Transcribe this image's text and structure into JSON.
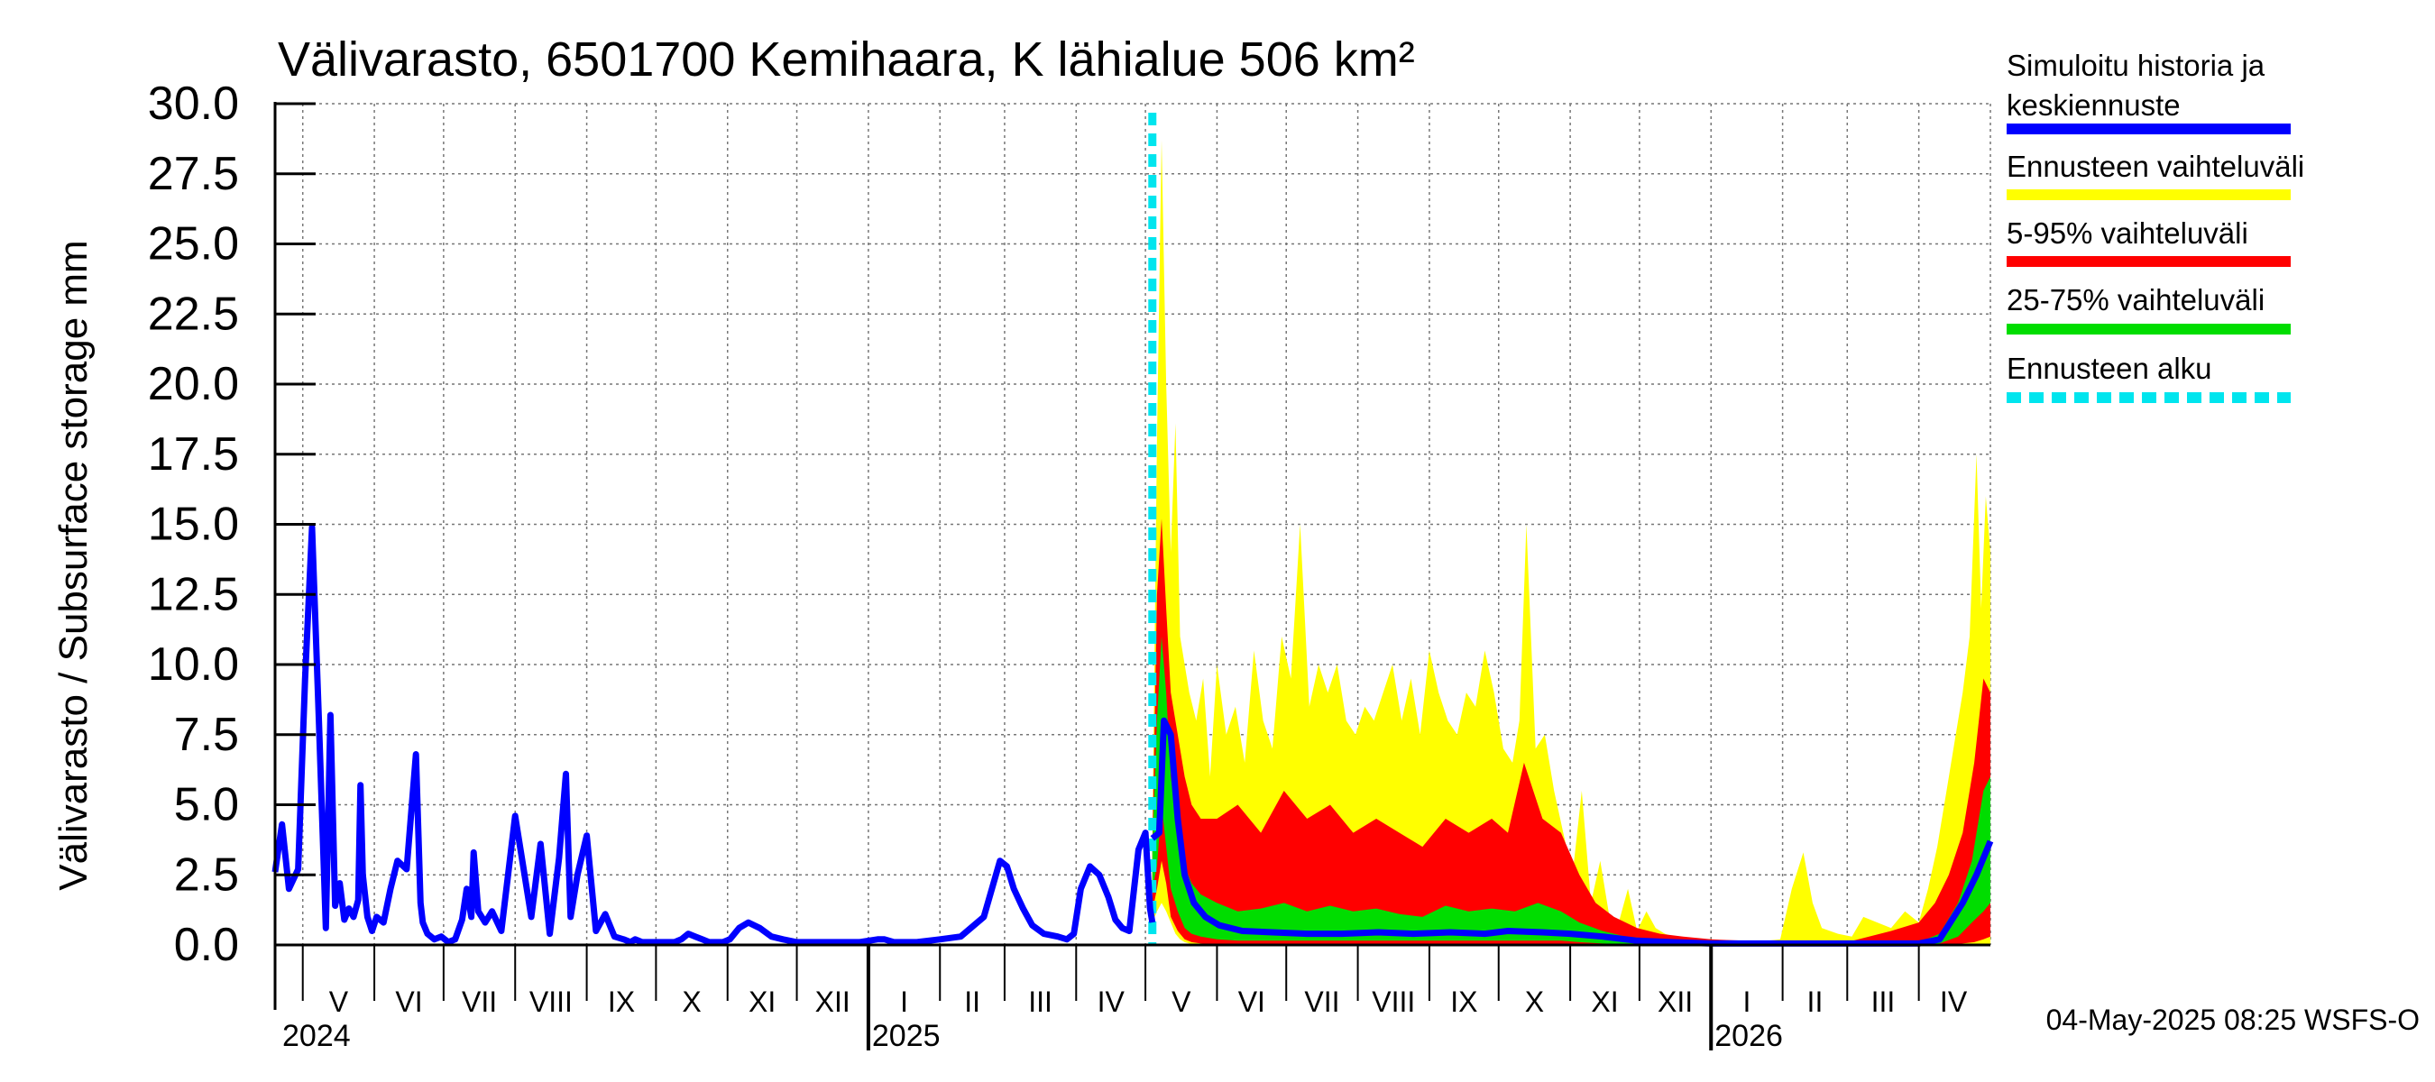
{
  "chart_data": {
    "type": "area",
    "title": "Välivarasto, 6501700 Kemihaara, K lähialue 506 km²",
    "ylabel": "Välivarasto / Subsurface storage  mm",
    "ylim": [
      0,
      30
    ],
    "yticks": [
      "0.0",
      "2.5",
      "5.0",
      "7.5",
      "10.0",
      "12.5",
      "15.0",
      "17.5",
      "20.0",
      "22.5",
      "25.0",
      "27.5",
      "30.0"
    ],
    "x_start": "2024-04-19",
    "x_end": "2026-05-02",
    "forecast_start": "2025-05-04",
    "grid": true,
    "months": [
      {
        "label": "V",
        "start": "2024-05-01",
        "end": "2024-06-01"
      },
      {
        "label": "VI",
        "start": "2024-06-01",
        "end": "2024-07-01"
      },
      {
        "label": "VII",
        "start": "2024-07-01",
        "end": "2024-08-01"
      },
      {
        "label": "VIII",
        "start": "2024-08-01",
        "end": "2024-09-01"
      },
      {
        "label": "IX",
        "start": "2024-09-01",
        "end": "2024-10-01"
      },
      {
        "label": "X",
        "start": "2024-10-01",
        "end": "2024-11-01"
      },
      {
        "label": "XI",
        "start": "2024-11-01",
        "end": "2024-12-01"
      },
      {
        "label": "XII",
        "start": "2024-12-01",
        "end": "2025-01-01"
      },
      {
        "label": "I",
        "start": "2025-01-01",
        "end": "2025-02-01"
      },
      {
        "label": "II",
        "start": "2025-02-01",
        "end": "2025-03-01"
      },
      {
        "label": "III",
        "start": "2025-03-01",
        "end": "2025-04-01"
      },
      {
        "label": "IV",
        "start": "2025-04-01",
        "end": "2025-05-01"
      },
      {
        "label": "V",
        "start": "2025-05-01",
        "end": "2025-06-01"
      },
      {
        "label": "VI",
        "start": "2025-06-01",
        "end": "2025-07-01"
      },
      {
        "label": "VII",
        "start": "2025-07-01",
        "end": "2025-08-01"
      },
      {
        "label": "VIII",
        "start": "2025-08-01",
        "end": "2025-09-01"
      },
      {
        "label": "IX",
        "start": "2025-09-01",
        "end": "2025-10-01"
      },
      {
        "label": "X",
        "start": "2025-10-01",
        "end": "2025-11-01"
      },
      {
        "label": "XI",
        "start": "2025-11-01",
        "end": "2025-12-01"
      },
      {
        "label": "XII",
        "start": "2025-12-01",
        "end": "2026-01-01"
      },
      {
        "label": "I",
        "start": "2026-01-01",
        "end": "2026-02-01"
      },
      {
        "label": "II",
        "start": "2026-02-01",
        "end": "2026-03-01"
      },
      {
        "label": "III",
        "start": "2026-03-01",
        "end": "2026-04-01"
      },
      {
        "label": "IV",
        "start": "2026-04-01",
        "end": "2026-05-01"
      }
    ],
    "years": [
      {
        "label": "2024",
        "date": "2024-04-19"
      },
      {
        "label": "2025",
        "date": "2025-01-01"
      },
      {
        "label": "2026",
        "date": "2026-01-01"
      }
    ],
    "history": {
      "name": "Simuloitu historia ja keskiennuste",
      "color": "#0000ff",
      "x": [
        "2024-04-19",
        "2024-04-22",
        "2024-04-25",
        "2024-04-29",
        "2024-05-02",
        "2024-05-05",
        "2024-05-08",
        "2024-05-11",
        "2024-05-13",
        "2024-05-15",
        "2024-05-17",
        "2024-05-19",
        "2024-05-21",
        "2024-05-23",
        "2024-05-25",
        "2024-05-26",
        "2024-05-27",
        "2024-05-29",
        "2024-05-31",
        "2024-06-02",
        "2024-06-05",
        "2024-06-08",
        "2024-06-11",
        "2024-06-15",
        "2024-06-19",
        "2024-06-21",
        "2024-06-22",
        "2024-06-24",
        "2024-06-27",
        "2024-06-30",
        "2024-07-03",
        "2024-07-06",
        "2024-07-09",
        "2024-07-11",
        "2024-07-13",
        "2024-07-14",
        "2024-07-16",
        "2024-07-19",
        "2024-07-22",
        "2024-07-26",
        "2024-08-01",
        "2024-08-08",
        "2024-08-12",
        "2024-08-16",
        "2024-08-20",
        "2024-08-23",
        "2024-08-25",
        "2024-08-28",
        "2024-09-01",
        "2024-09-05",
        "2024-09-09",
        "2024-09-13",
        "2024-09-17",
        "2024-09-20",
        "2024-09-22",
        "2024-09-25",
        "2024-09-28",
        "2024-10-01",
        "2024-10-04",
        "2024-10-07",
        "2024-10-09",
        "2024-10-12",
        "2024-10-15",
        "2024-10-18",
        "2024-10-21",
        "2024-10-24",
        "2024-10-27",
        "2024-10-30",
        "2024-11-02",
        "2024-11-06",
        "2024-11-10",
        "2024-11-15",
        "2024-11-20",
        "2024-11-25",
        "2024-12-01",
        "2024-12-10",
        "2024-12-20",
        "2024-12-28",
        "2025-01-05",
        "2025-01-08",
        "2025-01-12",
        "2025-01-16",
        "2025-01-22",
        "2025-02-01",
        "2025-02-10",
        "2025-02-20",
        "2025-02-27",
        "2025-03-02",
        "2025-03-05",
        "2025-03-09",
        "2025-03-13",
        "2025-03-18",
        "2025-03-24",
        "2025-03-28",
        "2025-03-31",
        "2025-04-03",
        "2025-04-07",
        "2025-04-11",
        "2025-04-15",
        "2025-04-18",
        "2025-04-21",
        "2025-04-24",
        "2025-04-28",
        "2025-05-01",
        "2025-05-03",
        "2025-05-04"
      ],
      "y": [
        2.6,
        4.3,
        2.0,
        2.7,
        9.5,
        14.9,
        8.0,
        0.6,
        8.2,
        1.4,
        2.2,
        0.9,
        1.3,
        1.0,
        1.6,
        5.7,
        2.5,
        1.0,
        0.5,
        1.0,
        0.8,
        2.0,
        3.0,
        2.7,
        6.8,
        1.5,
        0.8,
        0.4,
        0.2,
        0.3,
        0.1,
        0.2,
        0.9,
        2.0,
        1.0,
        3.3,
        1.2,
        0.8,
        1.2,
        0.5,
        4.6,
        1.0,
        3.6,
        0.4,
        3.1,
        6.1,
        1.0,
        2.5,
        3.9,
        0.5,
        1.1,
        0.3,
        0.2,
        0.1,
        0.2,
        0.1,
        0.1,
        0.1,
        0.1,
        0.1,
        0.1,
        0.2,
        0.4,
        0.3,
        0.2,
        0.1,
        0.1,
        0.1,
        0.2,
        0.6,
        0.8,
        0.6,
        0.3,
        0.2,
        0.1,
        0.1,
        0.1,
        0.1,
        0.2,
        0.2,
        0.1,
        0.1,
        0.1,
        0.2,
        0.3,
        1.0,
        3.0,
        2.8,
        2.0,
        1.3,
        0.7,
        0.4,
        0.3,
        0.2,
        0.4,
        2.0,
        2.8,
        2.5,
        1.7,
        0.9,
        0.6,
        0.5,
        3.4,
        4.0,
        1.3,
        0.8
      ]
    },
    "median_forecast": {
      "name": "Simuloitu historia ja keskiennuste",
      "color": "#0000ff",
      "x": [
        "2025-05-04",
        "2025-05-07",
        "2025-05-09",
        "2025-05-12",
        "2025-05-15",
        "2025-05-18",
        "2025-05-22",
        "2025-05-27",
        "2025-06-02",
        "2025-06-12",
        "2025-06-25",
        "2025-07-10",
        "2025-07-25",
        "2025-08-10",
        "2025-08-25",
        "2025-09-10",
        "2025-09-25",
        "2025-10-05",
        "2025-10-20",
        "2025-11-01",
        "2025-11-15",
        "2025-11-30",
        "2025-12-15",
        "2026-01-01",
        "2026-02-01",
        "2026-03-01",
        "2026-04-01",
        "2026-04-10",
        "2026-04-20",
        "2026-04-26",
        "2026-05-02"
      ],
      "y": [
        3.8,
        4.0,
        8.0,
        7.5,
        4.5,
        2.5,
        1.5,
        1.0,
        0.7,
        0.5,
        0.45,
        0.4,
        0.4,
        0.45,
        0.4,
        0.45,
        0.4,
        0.5,
        0.45,
        0.4,
        0.3,
        0.15,
        0.1,
        0.05,
        0.05,
        0.05,
        0.05,
        0.2,
        1.5,
        2.5,
        3.7
      ]
    },
    "bands": [
      {
        "name": "Ennusteen vaihteluväli",
        "color": "#ffff00",
        "x": [
          "2025-05-04",
          "2025-05-06",
          "2025-05-08",
          "2025-05-10",
          "2025-05-12",
          "2025-05-14",
          "2025-05-16",
          "2025-05-18",
          "2025-05-20",
          "2025-05-23",
          "2025-05-26",
          "2025-05-29",
          "2025-06-01",
          "2025-06-05",
          "2025-06-09",
          "2025-06-13",
          "2025-06-17",
          "2025-06-21",
          "2025-06-25",
          "2025-06-29",
          "2025-07-03",
          "2025-07-07",
          "2025-07-11",
          "2025-07-15",
          "2025-07-19",
          "2025-07-23",
          "2025-07-27",
          "2025-07-31",
          "2025-08-04",
          "2025-08-08",
          "2025-08-12",
          "2025-08-16",
          "2025-08-20",
          "2025-08-24",
          "2025-08-28",
          "2025-09-01",
          "2025-09-05",
          "2025-09-09",
          "2025-09-13",
          "2025-09-17",
          "2025-09-21",
          "2025-09-25",
          "2025-09-29",
          "2025-10-03",
          "2025-10-07",
          "2025-10-10",
          "2025-10-13",
          "2025-10-17",
          "2025-10-21",
          "2025-10-25",
          "2025-10-29",
          "2025-11-02",
          "2025-11-06",
          "2025-11-10",
          "2025-11-14",
          "2025-11-18",
          "2025-11-22",
          "2025-11-26",
          "2025-11-30",
          "2025-12-04",
          "2025-12-08",
          "2025-12-12",
          "2025-12-16",
          "2025-12-20",
          "2025-12-26",
          "2026-01-01",
          "2026-01-10",
          "2026-01-20",
          "2026-01-31",
          "2026-02-05",
          "2026-02-10",
          "2026-02-14",
          "2026-02-18",
          "2026-02-25",
          "2026-03-03",
          "2026-03-08",
          "2026-03-14",
          "2026-03-20",
          "2026-03-26",
          "2026-04-01",
          "2026-04-05",
          "2026-04-09",
          "2026-04-13",
          "2026-04-17",
          "2026-04-20",
          "2026-04-23",
          "2026-04-26",
          "2026-04-28",
          "2026-04-30",
          "2026-05-02"
        ],
        "low": [
          0.8,
          1.2,
          1.5,
          1.2,
          0.8,
          0.4,
          0.2,
          0.1,
          0.05,
          0.02,
          0,
          0,
          0,
          0,
          0,
          0,
          0,
          0,
          0,
          0,
          0,
          0,
          0,
          0,
          0,
          0,
          0,
          0,
          0,
          0,
          0,
          0,
          0,
          0,
          0,
          0,
          0,
          0,
          0,
          0,
          0,
          0,
          0,
          0,
          0,
          0,
          0,
          0,
          0,
          0,
          0,
          0,
          0,
          0,
          0,
          0,
          0,
          0,
          0,
          0,
          0,
          0,
          0,
          0,
          0,
          0,
          0,
          0,
          0,
          0,
          0,
          0,
          0,
          0,
          0,
          0,
          0,
          0,
          0,
          0,
          0,
          0,
          0,
          0,
          0,
          0,
          0,
          0,
          0,
          0
        ],
        "high": [
          3.8,
          18.0,
          28.7,
          20.0,
          14.0,
          18.6,
          11.0,
          10.0,
          9.0,
          8.0,
          9.5,
          6.0,
          10.0,
          7.5,
          8.5,
          6.5,
          10.5,
          8.0,
          7.0,
          11.0,
          9.5,
          15.0,
          8.5,
          10.0,
          9.0,
          10.0,
          8.0,
          7.5,
          8.5,
          8.0,
          9.0,
          10.0,
          8.0,
          9.5,
          7.5,
          10.5,
          9.0,
          8.0,
          7.5,
          9.0,
          8.5,
          10.5,
          9.0,
          7.0,
          6.5,
          8.0,
          15.0,
          7.0,
          7.5,
          5.5,
          4.0,
          2.5,
          5.5,
          1.5,
          3.0,
          1.0,
          0.8,
          2.0,
          0.5,
          1.2,
          0.6,
          0.4,
          0.3,
          0.25,
          0.2,
          0.2,
          0.1,
          0.1,
          0.2,
          2.0,
          3.3,
          1.5,
          0.6,
          0.4,
          0.3,
          1.0,
          0.8,
          0.6,
          1.2,
          0.8,
          2.0,
          3.5,
          5.5,
          7.5,
          9.0,
          11.0,
          17.5,
          12.0,
          16.0,
          14.0
        ]
      },
      {
        "name": "5-95% vaihteluväli",
        "color": "#ff0000",
        "x": [
          "2025-05-04",
          "2025-05-06",
          "2025-05-08",
          "2025-05-10",
          "2025-05-12",
          "2025-05-15",
          "2025-05-18",
          "2025-05-21",
          "2025-05-25",
          "2025-06-01",
          "2025-06-10",
          "2025-06-20",
          "2025-06-30",
          "2025-07-10",
          "2025-07-20",
          "2025-07-30",
          "2025-08-09",
          "2025-08-19",
          "2025-08-29",
          "2025-09-08",
          "2025-09-18",
          "2025-09-28",
          "2025-10-05",
          "2025-10-12",
          "2025-10-20",
          "2025-10-28",
          "2025-11-05",
          "2025-11-12",
          "2025-11-20",
          "2025-11-30",
          "2025-12-10",
          "2025-12-20",
          "2026-01-01",
          "2026-02-01",
          "2026-03-01",
          "2026-03-20",
          "2026-04-01",
          "2026-04-08",
          "2026-04-14",
          "2026-04-20",
          "2026-04-25",
          "2026-04-29",
          "2026-05-02"
        ],
        "low": [
          1.2,
          2.0,
          3.0,
          2.2,
          1.0,
          0.5,
          0.2,
          0.1,
          0.05,
          0.02,
          0.02,
          0.02,
          0.02,
          0.02,
          0.02,
          0.02,
          0.02,
          0.02,
          0.02,
          0.02,
          0.02,
          0.02,
          0.02,
          0.02,
          0.02,
          0.02,
          0.02,
          0.01,
          0.01,
          0.01,
          0,
          0,
          0,
          0,
          0,
          0,
          0,
          0,
          0,
          0.05,
          0.1,
          0.2,
          0.3
        ],
        "high": [
          3.5,
          12.5,
          15.2,
          12.0,
          9.0,
          7.5,
          6.0,
          5.0,
          4.5,
          4.5,
          5.0,
          4.0,
          5.5,
          4.5,
          5.0,
          4.0,
          4.5,
          4.0,
          3.5,
          4.5,
          4.0,
          4.5,
          4.0,
          6.5,
          4.5,
          4.0,
          2.5,
          1.5,
          1.0,
          0.6,
          0.4,
          0.3,
          0.2,
          0.1,
          0.1,
          0.5,
          0.8,
          1.5,
          2.5,
          4.0,
          6.5,
          9.5,
          9.0
        ]
      },
      {
        "name": "25-75% vaihteluväli",
        "color": "#00dd00",
        "x": [
          "2025-05-04",
          "2025-05-06",
          "2025-05-08",
          "2025-05-10",
          "2025-05-12",
          "2025-05-15",
          "2025-05-18",
          "2025-05-21",
          "2025-05-25",
          "2025-06-01",
          "2025-06-10",
          "2025-06-20",
          "2025-06-30",
          "2025-07-10",
          "2025-07-20",
          "2025-07-30",
          "2025-08-09",
          "2025-08-19",
          "2025-08-29",
          "2025-09-08",
          "2025-09-18",
          "2025-09-28",
          "2025-10-08",
          "2025-10-18",
          "2025-10-28",
          "2025-11-05",
          "2025-11-15",
          "2025-11-25",
          "2025-12-10",
          "2026-01-01",
          "2026-02-01",
          "2026-03-01",
          "2026-04-01",
          "2026-04-10",
          "2026-04-18",
          "2026-04-24",
          "2026-04-29",
          "2026-05-02"
        ],
        "low": [
          2.0,
          2.8,
          5.0,
          3.5,
          2.0,
          1.2,
          0.6,
          0.4,
          0.3,
          0.2,
          0.15,
          0.15,
          0.15,
          0.15,
          0.15,
          0.15,
          0.15,
          0.15,
          0.15,
          0.15,
          0.15,
          0.15,
          0.15,
          0.15,
          0.15,
          0.1,
          0.05,
          0.03,
          0.02,
          0.01,
          0.01,
          0.01,
          0.01,
          0.05,
          0.3,
          0.8,
          1.2,
          1.5
        ],
        "high": [
          3.5,
          8.0,
          11.0,
          9.0,
          6.0,
          4.0,
          2.8,
          2.2,
          1.8,
          1.5,
          1.2,
          1.3,
          1.5,
          1.2,
          1.4,
          1.2,
          1.3,
          1.1,
          1.0,
          1.4,
          1.2,
          1.3,
          1.2,
          1.5,
          1.2,
          0.8,
          0.5,
          0.3,
          0.2,
          0.1,
          0.1,
          0.1,
          0.1,
          0.4,
          1.5,
          3.0,
          5.5,
          6.0
        ]
      }
    ],
    "legend": [
      {
        "label": "Simuloitu historia ja\nkeskiennuste",
        "color": "#0000ff",
        "style": "solid"
      },
      {
        "label": "Ennusteen vaihteluväli",
        "color": "#ffff00",
        "style": "solid"
      },
      {
        "label": "5-95% vaihteluväli",
        "color": "#ff0000",
        "style": "solid"
      },
      {
        "label": "25-75% vaihteluväli",
        "color": "#00dd00",
        "style": "solid"
      },
      {
        "label": "Ennusteen alku",
        "color": "#00e5ee",
        "style": "dashed"
      }
    ],
    "legend_position": "right",
    "timestamp": "04-May-2025 08:25 WSFS-O"
  }
}
